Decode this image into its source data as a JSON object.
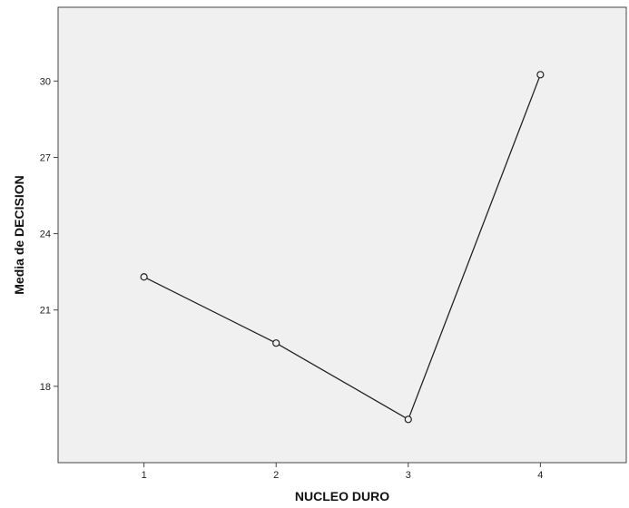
{
  "chart_data": {
    "type": "line",
    "xlabel": "NUCLEO DURO",
    "ylabel": "Media de DECISION",
    "categories": [
      "1",
      "2",
      "3",
      "4"
    ],
    "series": [
      {
        "values": [
          22.3,
          19.7,
          16.7,
          30.25
        ]
      }
    ],
    "xlim": [
      0.35,
      4.65
    ],
    "ylim": [
      15.0,
      32.9
    ],
    "yticks": [
      18,
      21,
      24,
      27,
      30
    ],
    "grid": false,
    "colors": {
      "plot_bg": "#f0f0f0",
      "line": "#222222",
      "marker": "#222222"
    }
  }
}
